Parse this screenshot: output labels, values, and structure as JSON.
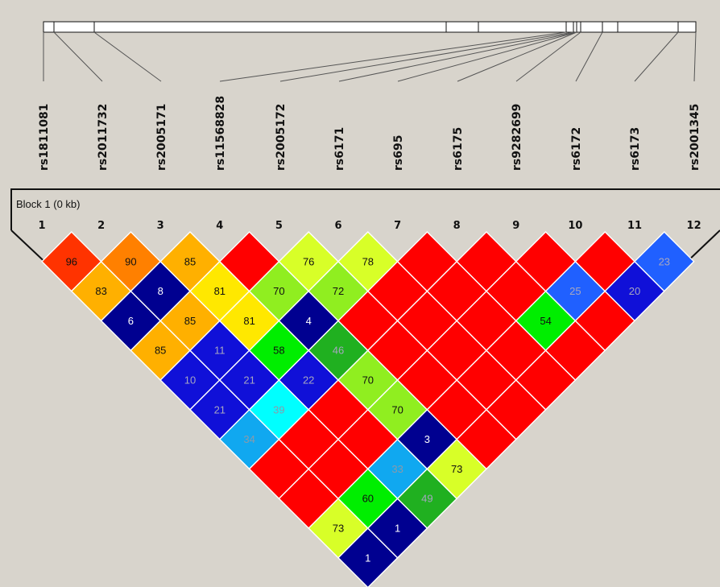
{
  "snps": [
    "rs1811081",
    "rs2011732",
    "rs2005171",
    "rs11568828",
    "rs2005172",
    "rs6171",
    "rs695",
    "rs6175",
    "rs9282699",
    "rs6172",
    "rs6173",
    "rs2001345"
  ],
  "indices": [
    "1",
    "2",
    "3",
    "4",
    "5",
    "6",
    "7",
    "8",
    "9",
    "10",
    "11",
    "12"
  ],
  "block_label": "Block 1 (0 kb)",
  "ld_colors": {
    "red": "#ff0000",
    "red_orange": "#ff3300",
    "orange": "#ff8000",
    "amber": "#ffb000",
    "yellow": "#ffe800",
    "lime_yellow": "#d8ff28",
    "light_green": "#90ee20",
    "green": "#00ee00",
    "dark_green": "#20b020",
    "cyan": "#00ffff",
    "sky_blue": "#10a8f0",
    "azure": "#2060ff",
    "blue": "#1010d8",
    "navy": "#000090"
  },
  "ld_matrix": [
    {
      "pair": "1-2",
      "value": "96",
      "color": "red_orange"
    },
    {
      "pair": "1-3",
      "value": "83",
      "color": "amber"
    },
    {
      "pair": "1-4",
      "value": "6",
      "color": "navy"
    },
    {
      "pair": "1-5",
      "value": "85",
      "color": "amber"
    },
    {
      "pair": "1-6",
      "value": "10",
      "color": "blue"
    },
    {
      "pair": "1-7",
      "value": "21",
      "color": "blue"
    },
    {
      "pair": "1-8",
      "value": "34",
      "color": "sky_blue"
    },
    {
      "pair": "1-9",
      "value": "",
      "color": "red"
    },
    {
      "pair": "1-10",
      "value": "",
      "color": "red"
    },
    {
      "pair": "1-11",
      "value": "73",
      "color": "lime_yellow"
    },
    {
      "pair": "1-12",
      "value": "1",
      "color": "navy"
    },
    {
      "pair": "2-3",
      "value": "90",
      "color": "orange"
    },
    {
      "pair": "2-4",
      "value": "8",
      "color": "navy"
    },
    {
      "pair": "2-5",
      "value": "85",
      "color": "amber"
    },
    {
      "pair": "2-6",
      "value": "11",
      "color": "blue"
    },
    {
      "pair": "2-7",
      "value": "21",
      "color": "blue"
    },
    {
      "pair": "2-8",
      "value": "39",
      "color": "cyan"
    },
    {
      "pair": "2-9",
      "value": "",
      "color": "red"
    },
    {
      "pair": "2-10",
      "value": "",
      "color": "red"
    },
    {
      "pair": "2-11",
      "value": "60",
      "color": "green"
    },
    {
      "pair": "2-12",
      "value": "1",
      "color": "navy"
    },
    {
      "pair": "3-4",
      "value": "85",
      "color": "amber"
    },
    {
      "pair": "3-5",
      "value": "81",
      "color": "yellow"
    },
    {
      "pair": "3-6",
      "value": "81",
      "color": "yellow"
    },
    {
      "pair": "3-7",
      "value": "58",
      "color": "green"
    },
    {
      "pair": "3-8",
      "value": "22",
      "color": "blue"
    },
    {
      "pair": "3-9",
      "value": "",
      "color": "red"
    },
    {
      "pair": "3-10",
      "value": "",
      "color": "red"
    },
    {
      "pair": "3-11",
      "value": "33",
      "color": "sky_blue"
    },
    {
      "pair": "3-12",
      "value": "49",
      "color": "dark_green"
    },
    {
      "pair": "4-5",
      "value": "",
      "color": "red"
    },
    {
      "pair": "4-6",
      "value": "70",
      "color": "light_green"
    },
    {
      "pair": "4-7",
      "value": "4",
      "color": "navy"
    },
    {
      "pair": "4-8",
      "value": "46",
      "color": "dark_green"
    },
    {
      "pair": "4-9",
      "value": "70",
      "color": "light_green"
    },
    {
      "pair": "4-10",
      "value": "70",
      "color": "light_green"
    },
    {
      "pair": "4-11",
      "value": "3",
      "color": "navy"
    },
    {
      "pair": "4-12",
      "value": "73",
      "color": "lime_yellow"
    },
    {
      "pair": "5-6",
      "value": "76",
      "color": "lime_yellow"
    },
    {
      "pair": "5-7",
      "value": "72",
      "color": "light_green"
    },
    {
      "pair": "5-8",
      "value": "",
      "color": "red"
    },
    {
      "pair": "5-9",
      "value": "",
      "color": "red"
    },
    {
      "pair": "5-10",
      "value": "",
      "color": "red"
    },
    {
      "pair": "5-11",
      "value": "",
      "color": "red"
    },
    {
      "pair": "5-12",
      "value": "",
      "color": "red"
    },
    {
      "pair": "6-7",
      "value": "78",
      "color": "lime_yellow"
    },
    {
      "pair": "6-8",
      "value": "",
      "color": "red"
    },
    {
      "pair": "6-9",
      "value": "",
      "color": "red"
    },
    {
      "pair": "6-10",
      "value": "",
      "color": "red"
    },
    {
      "pair": "6-11",
      "value": "",
      "color": "red"
    },
    {
      "pair": "6-12",
      "value": "",
      "color": "red"
    },
    {
      "pair": "7-8",
      "value": "",
      "color": "red"
    },
    {
      "pair": "7-9",
      "value": "",
      "color": "red"
    },
    {
      "pair": "7-10",
      "value": "",
      "color": "red"
    },
    {
      "pair": "7-11",
      "value": "",
      "color": "red"
    },
    {
      "pair": "7-12",
      "value": "",
      "color": "red"
    },
    {
      "pair": "8-9",
      "value": "",
      "color": "red"
    },
    {
      "pair": "8-10",
      "value": "",
      "color": "red"
    },
    {
      "pair": "8-11",
      "value": "54",
      "color": "green"
    },
    {
      "pair": "8-12",
      "value": "",
      "color": "red"
    },
    {
      "pair": "9-10",
      "value": "",
      "color": "red"
    },
    {
      "pair": "9-11",
      "value": "25",
      "color": "azure"
    },
    {
      "pair": "9-12",
      "value": "",
      "color": "red"
    },
    {
      "pair": "10-11",
      "value": "",
      "color": "red"
    },
    {
      "pair": "10-12",
      "value": "20",
      "color": "blue"
    },
    {
      "pair": "11-12",
      "value": "23",
      "color": "azure"
    }
  ]
}
